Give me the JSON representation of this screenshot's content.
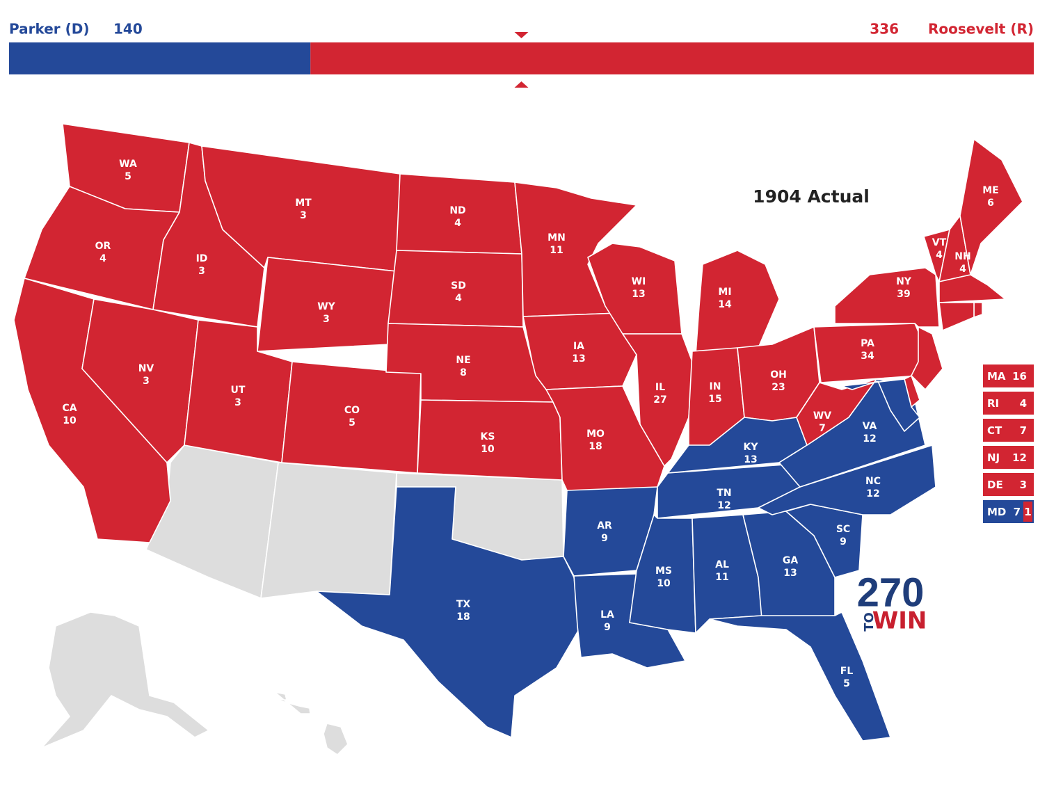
{
  "header": {
    "candidates": [
      {
        "name": "Parker (D)",
        "votes": 140,
        "party": "D"
      },
      {
        "name": "Roosevelt (R)",
        "votes": 336,
        "party": "R"
      }
    ]
  },
  "map": {
    "title": "1904 Actual",
    "colors": {
      "D": "#244999",
      "R": "#d22532",
      "unassigned": "#dddddd"
    },
    "states": [
      {
        "abbr": "WA",
        "votes": 5,
        "party": "R"
      },
      {
        "abbr": "OR",
        "votes": 4,
        "party": "R"
      },
      {
        "abbr": "CA",
        "votes": 10,
        "party": "R"
      },
      {
        "abbr": "NV",
        "votes": 3,
        "party": "R"
      },
      {
        "abbr": "ID",
        "votes": 3,
        "party": "R"
      },
      {
        "abbr": "MT",
        "votes": 3,
        "party": "R"
      },
      {
        "abbr": "WY",
        "votes": 3,
        "party": "R"
      },
      {
        "abbr": "UT",
        "votes": 3,
        "party": "R"
      },
      {
        "abbr": "CO",
        "votes": 5,
        "party": "R"
      },
      {
        "abbr": "ND",
        "votes": 4,
        "party": "R"
      },
      {
        "abbr": "SD",
        "votes": 4,
        "party": "R"
      },
      {
        "abbr": "NE",
        "votes": 8,
        "party": "R"
      },
      {
        "abbr": "KS",
        "votes": 10,
        "party": "R"
      },
      {
        "abbr": "TX",
        "votes": 18,
        "party": "D"
      },
      {
        "abbr": "MN",
        "votes": 11,
        "party": "R"
      },
      {
        "abbr": "IA",
        "votes": 13,
        "party": "R"
      },
      {
        "abbr": "MO",
        "votes": 18,
        "party": "R"
      },
      {
        "abbr": "AR",
        "votes": 9,
        "party": "D"
      },
      {
        "abbr": "LA",
        "votes": 9,
        "party": "D"
      },
      {
        "abbr": "WI",
        "votes": 13,
        "party": "R"
      },
      {
        "abbr": "IL",
        "votes": 27,
        "party": "R"
      },
      {
        "abbr": "MI",
        "votes": 14,
        "party": "R"
      },
      {
        "abbr": "IN",
        "votes": 15,
        "party": "R"
      },
      {
        "abbr": "OH",
        "votes": 23,
        "party": "R"
      },
      {
        "abbr": "KY",
        "votes": 13,
        "party": "D"
      },
      {
        "abbr": "TN",
        "votes": 12,
        "party": "D"
      },
      {
        "abbr": "MS",
        "votes": 10,
        "party": "D"
      },
      {
        "abbr": "AL",
        "votes": 11,
        "party": "D"
      },
      {
        "abbr": "GA",
        "votes": 13,
        "party": "D"
      },
      {
        "abbr": "FL",
        "votes": 5,
        "party": "D"
      },
      {
        "abbr": "SC",
        "votes": 9,
        "party": "D"
      },
      {
        "abbr": "NC",
        "votes": 12,
        "party": "D"
      },
      {
        "abbr": "VA",
        "votes": 12,
        "party": "D"
      },
      {
        "abbr": "WV",
        "votes": 7,
        "party": "R"
      },
      {
        "abbr": "PA",
        "votes": 34,
        "party": "R"
      },
      {
        "abbr": "NY",
        "votes": 39,
        "party": "R"
      },
      {
        "abbr": "VT",
        "votes": 4,
        "party": "R"
      },
      {
        "abbr": "NH",
        "votes": 4,
        "party": "R"
      },
      {
        "abbr": "ME",
        "votes": 6,
        "party": "R"
      }
    ],
    "side_box_states": [
      {
        "abbr": "MA",
        "split": [
          {
            "party": "R",
            "votes": 16
          }
        ]
      },
      {
        "abbr": "RI",
        "split": [
          {
            "party": "R",
            "votes": 4
          }
        ]
      },
      {
        "abbr": "CT",
        "split": [
          {
            "party": "R",
            "votes": 7
          }
        ]
      },
      {
        "abbr": "NJ",
        "split": [
          {
            "party": "R",
            "votes": 12
          }
        ]
      },
      {
        "abbr": "DE",
        "split": [
          {
            "party": "R",
            "votes": 3
          }
        ]
      },
      {
        "abbr": "MD",
        "split": [
          {
            "party": "D",
            "votes": 7
          },
          {
            "party": "R",
            "votes": 1
          }
        ]
      }
    ]
  },
  "logo": {
    "number": "270",
    "to": "TO",
    "win": "WIN"
  }
}
